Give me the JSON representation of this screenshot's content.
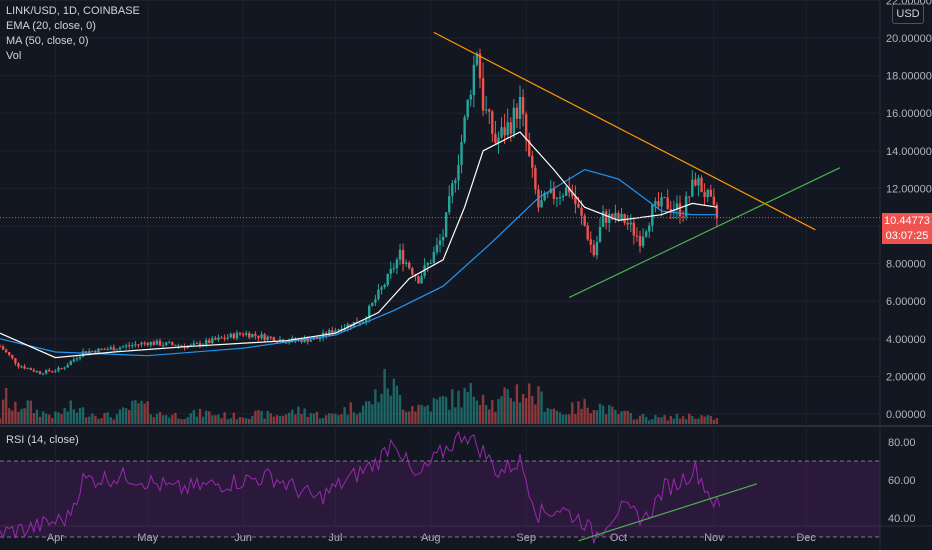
{
  "legend": {
    "symbol": "LINK/USD, 1D, COINBASE",
    "ema": "EMA (20, close, 0)",
    "ma": "MA (50, close, 0)",
    "vol": "Vol",
    "rsi": "RSI (14, close)"
  },
  "currency_badge": "USD",
  "last_price_label": "10.44773",
  "countdown_label": "03:07:25",
  "colors": {
    "background": "#131722",
    "up": "#26a69a",
    "down": "#ef5350",
    "ema": "#ffffff",
    "ma": "#2196f3",
    "rsi": "#9c27b0",
    "resistance": "#ff9800",
    "support": "#4caf50"
  },
  "chart_data": [
    {
      "type": "candlestick",
      "title": "LINK/USD, 1D, COINBASE",
      "price_axis_ticks": [
        "22.00000",
        "20.00000",
        "18.00000",
        "16.00000",
        "14.00000",
        "12.00000",
        "10.00000",
        "8.00000",
        "6.00000",
        "4.00000",
        "2.00000",
        "0.00000"
      ],
      "time_axis_ticks": [
        "Apr",
        "May",
        "Jun",
        "Jul",
        "Aug",
        "Sep",
        "Oct",
        "Nov",
        "Dec"
      ],
      "ylim": [
        0,
        22
      ],
      "xlim": [
        "2020-03-14",
        "2020-12-25"
      ],
      "last_price": 10.44773,
      "close_series": [
        [
          "2020-03-14",
          3.6
        ],
        [
          "2020-03-20",
          2.6
        ],
        [
          "2020-03-27",
          2.2
        ],
        [
          "2020-04-03",
          2.4
        ],
        [
          "2020-04-10",
          3.3
        ],
        [
          "2020-04-20",
          3.5
        ],
        [
          "2020-05-01",
          3.8
        ],
        [
          "2020-05-15",
          3.6
        ],
        [
          "2020-06-01",
          4.3
        ],
        [
          "2020-06-15",
          3.9
        ],
        [
          "2020-06-25",
          4.0
        ],
        [
          "2020-07-01",
          4.5
        ],
        [
          "2020-07-10",
          5.0
        ],
        [
          "2020-07-18",
          7.2
        ],
        [
          "2020-07-22",
          8.5
        ],
        [
          "2020-07-28",
          7.2
        ],
        [
          "2020-08-01",
          8.2
        ],
        [
          "2020-08-05",
          9.5
        ],
        [
          "2020-08-08",
          12.0
        ],
        [
          "2020-08-11",
          14.5
        ],
        [
          "2020-08-14",
          17.5
        ],
        [
          "2020-08-16",
          19.5
        ],
        [
          "2020-08-18",
          16.5
        ],
        [
          "2020-08-22",
          14.5
        ],
        [
          "2020-08-27",
          15.5
        ],
        [
          "2020-08-30",
          16.5
        ],
        [
          "2020-09-02",
          13.5
        ],
        [
          "2020-09-05",
          11.0
        ],
        [
          "2020-09-08",
          11.5
        ],
        [
          "2020-09-15",
          12.0
        ],
        [
          "2020-09-20",
          10.0
        ],
        [
          "2020-09-23",
          8.5
        ],
        [
          "2020-09-26",
          10.5
        ],
        [
          "2020-10-03",
          10.3
        ],
        [
          "2020-10-08",
          9.3
        ],
        [
          "2020-10-12",
          10.8
        ],
        [
          "2020-10-16",
          11.2
        ],
        [
          "2020-10-22",
          10.8
        ],
        [
          "2020-10-26",
          12.5
        ],
        [
          "2020-10-30",
          11.5
        ],
        [
          "2020-11-02",
          10.4
        ]
      ],
      "ema_20_series": [
        [
          "2020-03-14",
          4.3
        ],
        [
          "2020-04-01",
          3.0
        ],
        [
          "2020-04-20",
          3.3
        ],
        [
          "2020-05-15",
          3.6
        ],
        [
          "2020-06-15",
          3.9
        ],
        [
          "2020-07-01",
          4.3
        ],
        [
          "2020-07-15",
          5.4
        ],
        [
          "2020-07-25",
          7.2
        ],
        [
          "2020-08-05",
          8.2
        ],
        [
          "2020-08-12",
          11.0
        ],
        [
          "2020-08-18",
          14.0
        ],
        [
          "2020-08-30",
          15.0
        ],
        [
          "2020-09-10",
          13.0
        ],
        [
          "2020-09-20",
          11.0
        ],
        [
          "2020-10-01",
          10.3
        ],
        [
          "2020-10-15",
          10.6
        ],
        [
          "2020-10-25",
          11.2
        ],
        [
          "2020-11-02",
          11.0
        ]
      ],
      "ma_50_series": [
        [
          "2020-03-14",
          4.0
        ],
        [
          "2020-04-01",
          3.3
        ],
        [
          "2020-05-01",
          3.1
        ],
        [
          "2020-06-01",
          3.5
        ],
        [
          "2020-07-01",
          4.2
        ],
        [
          "2020-07-20",
          5.5
        ],
        [
          "2020-08-05",
          6.8
        ],
        [
          "2020-08-20",
          9.0
        ],
        [
          "2020-09-05",
          11.5
        ],
        [
          "2020-09-20",
          13.0
        ],
        [
          "2020-10-01",
          12.5
        ],
        [
          "2020-10-15",
          10.8
        ],
        [
          "2020-10-25",
          10.6
        ],
        [
          "2020-11-02",
          10.6
        ]
      ],
      "volume_series": [
        [
          "2020-03-14",
          0.6
        ],
        [
          "2020-03-16",
          2.3
        ],
        [
          "2020-03-18",
          1.1
        ],
        [
          "2020-03-22",
          1.7
        ],
        [
          "2020-03-26",
          1.0
        ],
        [
          "2020-04-01",
          0.7
        ],
        [
          "2020-04-06",
          1.3
        ],
        [
          "2020-04-12",
          0.9
        ],
        [
          "2020-04-20",
          0.6
        ],
        [
          "2020-04-28",
          1.6
        ],
        [
          "2020-05-05",
          0.8
        ],
        [
          "2020-05-12",
          0.7
        ],
        [
          "2020-05-20",
          0.9
        ],
        [
          "2020-05-28",
          0.6
        ],
        [
          "2020-06-04",
          0.8
        ],
        [
          "2020-06-12",
          0.7
        ],
        [
          "2020-06-20",
          1.1
        ],
        [
          "2020-06-28",
          0.6
        ],
        [
          "2020-07-06",
          1.3
        ],
        [
          "2020-07-12",
          1.6
        ],
        [
          "2020-07-18",
          3.5
        ],
        [
          "2020-07-24",
          1.5
        ],
        [
          "2020-07-30",
          1.4
        ],
        [
          "2020-08-05",
          1.9
        ],
        [
          "2020-08-10",
          2.1
        ],
        [
          "2020-08-14",
          2.4
        ],
        [
          "2020-08-17",
          2.9
        ],
        [
          "2020-08-22",
          1.4
        ],
        [
          "2020-08-28",
          2.7
        ],
        [
          "2020-09-02",
          2.6
        ],
        [
          "2020-09-06",
          2.0
        ],
        [
          "2020-09-12",
          0.9
        ],
        [
          "2020-09-20",
          1.5
        ],
        [
          "2020-09-23",
          1.7
        ],
        [
          "2020-09-30",
          0.9
        ],
        [
          "2020-10-08",
          0.6
        ],
        [
          "2020-10-15",
          0.5
        ],
        [
          "2020-10-22",
          0.6
        ],
        [
          "2020-10-26",
          0.7
        ],
        [
          "2020-11-02",
          0.4
        ]
      ],
      "resistance_line": [
        [
          "2020-08-02",
          20.3
        ],
        [
          "2020-12-04",
          9.8
        ]
      ],
      "support_line": [
        [
          "2020-09-15",
          6.2
        ],
        [
          "2020-12-12",
          13.1
        ]
      ]
    },
    {
      "type": "line",
      "title": "RSI (14, close)",
      "axis_ticks": [
        "80.00",
        "60.00",
        "40.00"
      ],
      "ylim": [
        25,
        88
      ],
      "upper_band": 70,
      "lower_band": 30,
      "rsi_series": [
        [
          "2020-03-14",
          32
        ],
        [
          "2020-03-25",
          35
        ],
        [
          "2020-04-05",
          40
        ],
        [
          "2020-04-10",
          60
        ],
        [
          "2020-04-25",
          62
        ],
        [
          "2020-05-10",
          55
        ],
        [
          "2020-05-25",
          58
        ],
        [
          "2020-06-10",
          62
        ],
        [
          "2020-06-25",
          50
        ],
        [
          "2020-07-05",
          60
        ],
        [
          "2020-07-15",
          70
        ],
        [
          "2020-07-20",
          82
        ],
        [
          "2020-07-27",
          60
        ],
        [
          "2020-08-03",
          72
        ],
        [
          "2020-08-12",
          85
        ],
        [
          "2020-08-18",
          75
        ],
        [
          "2020-08-23",
          64
        ],
        [
          "2020-08-30",
          70
        ],
        [
          "2020-09-05",
          42
        ],
        [
          "2020-09-12",
          45
        ],
        [
          "2020-09-20",
          38
        ],
        [
          "2020-09-23",
          30
        ],
        [
          "2020-10-01",
          45
        ],
        [
          "2020-10-10",
          40
        ],
        [
          "2020-10-16",
          56
        ],
        [
          "2020-10-20",
          58
        ],
        [
          "2020-10-26",
          66
        ],
        [
          "2020-10-30",
          54
        ],
        [
          "2020-11-03",
          44
        ]
      ],
      "trend_line": [
        [
          "2020-09-18",
          28
        ],
        [
          "2020-11-15",
          58
        ]
      ]
    }
  ]
}
